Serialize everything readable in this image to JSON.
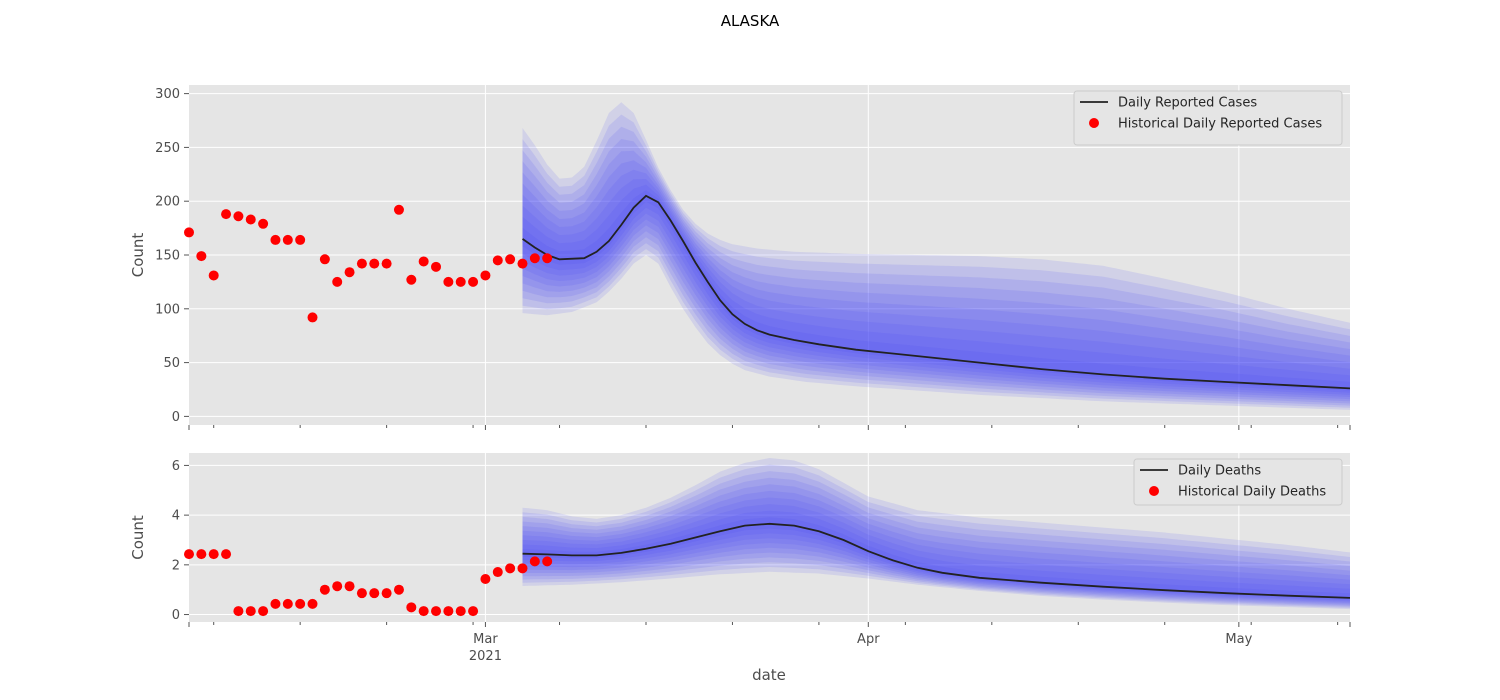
{
  "suptitle": "ALASKA",
  "chart_data": [
    {
      "type": "line",
      "ylabel": "Count",
      "xlabel": "",
      "ylim": [
        -8,
        308
      ],
      "yticks": [
        0,
        50,
        100,
        150,
        200,
        250,
        300
      ],
      "xlim": [
        "2021-02-05",
        "2021-05-10"
      ],
      "x_tick_labels": [
        {
          "date": "2021-03-01",
          "label": "Mar",
          "sublabel": "2021"
        },
        {
          "date": "2021-04-01",
          "label": "Apr",
          "sublabel": ""
        },
        {
          "date": "2021-05-01",
          "label": "May",
          "sublabel": ""
        }
      ],
      "grid": true,
      "legend_position": "top-right",
      "series": [
        {
          "name": "Daily Reported Cases",
          "kind": "line",
          "color": "#222222",
          "points": [
            [
              "2021-03-04",
              165
            ],
            [
              "2021-03-05",
              157
            ],
            [
              "2021-03-06",
              150
            ],
            [
              "2021-03-07",
              146
            ],
            [
              "2021-03-09",
              147
            ],
            [
              "2021-03-10",
              153
            ],
            [
              "2021-03-11",
              163
            ],
            [
              "2021-03-12",
              178
            ],
            [
              "2021-03-13",
              194
            ],
            [
              "2021-03-14",
              205
            ],
            [
              "2021-03-15",
              199
            ],
            [
              "2021-03-16",
              182
            ],
            [
              "2021-03-17",
              163
            ],
            [
              "2021-03-18",
              143
            ],
            [
              "2021-03-19",
              125
            ],
            [
              "2021-03-20",
              108
            ],
            [
              "2021-03-21",
              95
            ],
            [
              "2021-03-22",
              86
            ],
            [
              "2021-03-23",
              80
            ],
            [
              "2021-03-24",
              76
            ],
            [
              "2021-03-26",
              71
            ],
            [
              "2021-03-28",
              67
            ],
            [
              "2021-03-31",
              62
            ],
            [
              "2021-04-05",
              56
            ],
            [
              "2021-04-10",
              50
            ],
            [
              "2021-04-15",
              44
            ],
            [
              "2021-04-20",
              39
            ],
            [
              "2021-04-25",
              35
            ],
            [
              "2021-04-30",
              32
            ],
            [
              "2021-05-05",
              29
            ],
            [
              "2021-05-10",
              26
            ]
          ]
        },
        {
          "name": "Historical Daily Reported Cases",
          "kind": "scatter",
          "color": "#ff0000",
          "points": [
            [
              "2021-02-05",
              171
            ],
            [
              "2021-02-06",
              149
            ],
            [
              "2021-02-07",
              131
            ],
            [
              "2021-02-08",
              188
            ],
            [
              "2021-02-09",
              186
            ],
            [
              "2021-02-10",
              183
            ],
            [
              "2021-02-11",
              179
            ],
            [
              "2021-02-12",
              164
            ],
            [
              "2021-02-13",
              164
            ],
            [
              "2021-02-14",
              164
            ],
            [
              "2021-02-15",
              92
            ],
            [
              "2021-02-16",
              146
            ],
            [
              "2021-02-17",
              125
            ],
            [
              "2021-02-18",
              134
            ],
            [
              "2021-02-19",
              142
            ],
            [
              "2021-02-20",
              142
            ],
            [
              "2021-02-21",
              142
            ],
            [
              "2021-02-22",
              192
            ],
            [
              "2021-02-23",
              127
            ],
            [
              "2021-02-24",
              144
            ],
            [
              "2021-02-25",
              139
            ],
            [
              "2021-02-26",
              125
            ],
            [
              "2021-02-27",
              125
            ],
            [
              "2021-02-28",
              125
            ],
            [
              "2021-03-01",
              131
            ],
            [
              "2021-03-02",
              145
            ],
            [
              "2021-03-03",
              146
            ],
            [
              "2021-03-04",
              142
            ],
            [
              "2021-03-05",
              147
            ],
            [
              "2021-03-06",
              147
            ]
          ]
        }
      ],
      "uncertainty_band": {
        "color": "#3f3ff5",
        "upper": [
          [
            "2021-03-04",
            268
          ],
          [
            "2021-03-05",
            252
          ],
          [
            "2021-03-06",
            234
          ],
          [
            "2021-03-07",
            221
          ],
          [
            "2021-03-08",
            222
          ],
          [
            "2021-03-09",
            232
          ],
          [
            "2021-03-10",
            256
          ],
          [
            "2021-03-11",
            282
          ],
          [
            "2021-03-12",
            292
          ],
          [
            "2021-03-13",
            282
          ],
          [
            "2021-03-14",
            257
          ],
          [
            "2021-03-15",
            231
          ],
          [
            "2021-03-16",
            210
          ],
          [
            "2021-03-17",
            192
          ],
          [
            "2021-03-18",
            179
          ],
          [
            "2021-03-19",
            170
          ],
          [
            "2021-03-20",
            164
          ],
          [
            "2021-03-21",
            160
          ],
          [
            "2021-03-23",
            156
          ],
          [
            "2021-03-26",
            153
          ],
          [
            "2021-03-31",
            151
          ],
          [
            "2021-04-05",
            150
          ],
          [
            "2021-04-10",
            149
          ],
          [
            "2021-04-15",
            146
          ],
          [
            "2021-04-20",
            140
          ],
          [
            "2021-04-25",
            128
          ],
          [
            "2021-04-30",
            115
          ],
          [
            "2021-05-05",
            100
          ],
          [
            "2021-05-10",
            87
          ]
        ],
        "lower": [
          [
            "2021-03-04",
            96
          ],
          [
            "2021-03-06",
            94
          ],
          [
            "2021-03-08",
            97
          ],
          [
            "2021-03-10",
            106
          ],
          [
            "2021-03-11",
            116
          ],
          [
            "2021-03-12",
            128
          ],
          [
            "2021-03-13",
            142
          ],
          [
            "2021-03-14",
            150
          ],
          [
            "2021-03-15",
            142
          ],
          [
            "2021-03-16",
            120
          ],
          [
            "2021-03-17",
            100
          ],
          [
            "2021-03-18",
            83
          ],
          [
            "2021-03-19",
            68
          ],
          [
            "2021-03-20",
            57
          ],
          [
            "2021-03-21",
            49
          ],
          [
            "2021-03-22",
            43
          ],
          [
            "2021-03-24",
            37
          ],
          [
            "2021-03-27",
            32
          ],
          [
            "2021-03-31",
            28
          ],
          [
            "2021-04-05",
            24
          ],
          [
            "2021-04-10",
            20
          ],
          [
            "2021-04-15",
            17
          ],
          [
            "2021-04-20",
            14
          ],
          [
            "2021-04-25",
            12
          ],
          [
            "2021-04-30",
            10
          ],
          [
            "2021-05-05",
            8
          ],
          [
            "2021-05-10",
            6
          ]
        ]
      }
    },
    {
      "type": "line",
      "ylabel": "Count",
      "xlabel": "date",
      "ylim": [
        -0.3,
        6.5
      ],
      "yticks": [
        0,
        2,
        4,
        6
      ],
      "xlim": [
        "2021-02-05",
        "2021-05-10"
      ],
      "x_tick_labels": [
        {
          "date": "2021-03-01",
          "label": "Mar",
          "sublabel": "2021"
        },
        {
          "date": "2021-04-01",
          "label": "Apr",
          "sublabel": ""
        },
        {
          "date": "2021-05-01",
          "label": "May",
          "sublabel": ""
        }
      ],
      "grid": true,
      "legend_position": "top-right",
      "series": [
        {
          "name": "Daily Deaths",
          "kind": "line",
          "color": "#222222",
          "points": [
            [
              "2021-03-04",
              2.45
            ],
            [
              "2021-03-06",
              2.42
            ],
            [
              "2021-03-08",
              2.38
            ],
            [
              "2021-03-10",
              2.38
            ],
            [
              "2021-03-12",
              2.48
            ],
            [
              "2021-03-14",
              2.65
            ],
            [
              "2021-03-16",
              2.85
            ],
            [
              "2021-03-18",
              3.1
            ],
            [
              "2021-03-20",
              3.35
            ],
            [
              "2021-03-22",
              3.58
            ],
            [
              "2021-03-24",
              3.65
            ],
            [
              "2021-03-26",
              3.58
            ],
            [
              "2021-03-28",
              3.35
            ],
            [
              "2021-03-30",
              3.0
            ],
            [
              "2021-04-01",
              2.55
            ],
            [
              "2021-04-03",
              2.18
            ],
            [
              "2021-04-05",
              1.88
            ],
            [
              "2021-04-07",
              1.68
            ],
            [
              "2021-04-10",
              1.48
            ],
            [
              "2021-04-15",
              1.28
            ],
            [
              "2021-04-20",
              1.12
            ],
            [
              "2021-04-25",
              0.98
            ],
            [
              "2021-04-30",
              0.86
            ],
            [
              "2021-05-05",
              0.76
            ],
            [
              "2021-05-10",
              0.67
            ]
          ]
        },
        {
          "name": "Historical Daily Deaths",
          "kind": "scatter",
          "color": "#ff0000",
          "points": [
            [
              "2021-02-05",
              2.43
            ],
            [
              "2021-02-06",
              2.43
            ],
            [
              "2021-02-07",
              2.43
            ],
            [
              "2021-02-08",
              2.43
            ],
            [
              "2021-02-09",
              0.14
            ],
            [
              "2021-02-10",
              0.14
            ],
            [
              "2021-02-11",
              0.14
            ],
            [
              "2021-02-12",
              0.43
            ],
            [
              "2021-02-13",
              0.43
            ],
            [
              "2021-02-14",
              0.43
            ],
            [
              "2021-02-15",
              0.43
            ],
            [
              "2021-02-16",
              1.0
            ],
            [
              "2021-02-17",
              1.14
            ],
            [
              "2021-02-18",
              1.14
            ],
            [
              "2021-02-19",
              0.86
            ],
            [
              "2021-02-20",
              0.86
            ],
            [
              "2021-02-21",
              0.86
            ],
            [
              "2021-02-22",
              1.0
            ],
            [
              "2021-02-23",
              0.29
            ],
            [
              "2021-02-24",
              0.14
            ],
            [
              "2021-02-25",
              0.14
            ],
            [
              "2021-02-26",
              0.14
            ],
            [
              "2021-02-27",
              0.14
            ],
            [
              "2021-02-28",
              0.14
            ],
            [
              "2021-03-01",
              1.43
            ],
            [
              "2021-03-02",
              1.71
            ],
            [
              "2021-03-03",
              1.86
            ],
            [
              "2021-03-04",
              1.86
            ],
            [
              "2021-03-05",
              2.14
            ],
            [
              "2021-03-06",
              2.14
            ]
          ]
        }
      ],
      "uncertainty_band": {
        "color": "#3f3ff5",
        "upper": [
          [
            "2021-03-04",
            4.3
          ],
          [
            "2021-03-06",
            4.2
          ],
          [
            "2021-03-08",
            3.95
          ],
          [
            "2021-03-10",
            3.85
          ],
          [
            "2021-03-12",
            4.0
          ],
          [
            "2021-03-14",
            4.3
          ],
          [
            "2021-03-16",
            4.7
          ],
          [
            "2021-03-18",
            5.2
          ],
          [
            "2021-03-20",
            5.75
          ],
          [
            "2021-03-22",
            6.1
          ],
          [
            "2021-03-24",
            6.3
          ],
          [
            "2021-03-26",
            6.2
          ],
          [
            "2021-03-28",
            5.85
          ],
          [
            "2021-03-30",
            5.3
          ],
          [
            "2021-04-01",
            4.75
          ],
          [
            "2021-04-05",
            4.2
          ],
          [
            "2021-04-10",
            3.9
          ],
          [
            "2021-04-15",
            3.7
          ],
          [
            "2021-04-20",
            3.5
          ],
          [
            "2021-04-25",
            3.3
          ],
          [
            "2021-04-30",
            3.05
          ],
          [
            "2021-05-05",
            2.8
          ],
          [
            "2021-05-10",
            2.5
          ]
        ],
        "lower": [
          [
            "2021-03-04",
            1.15
          ],
          [
            "2021-03-08",
            1.2
          ],
          [
            "2021-03-12",
            1.3
          ],
          [
            "2021-03-16",
            1.45
          ],
          [
            "2021-03-20",
            1.62
          ],
          [
            "2021-03-24",
            1.72
          ],
          [
            "2021-03-28",
            1.65
          ],
          [
            "2021-04-01",
            1.45
          ],
          [
            "2021-04-05",
            1.2
          ],
          [
            "2021-04-10",
            0.95
          ],
          [
            "2021-04-15",
            0.75
          ],
          [
            "2021-04-20",
            0.6
          ],
          [
            "2021-04-25",
            0.48
          ],
          [
            "2021-04-30",
            0.38
          ],
          [
            "2021-05-05",
            0.3
          ],
          [
            "2021-05-10",
            0.22
          ]
        ]
      }
    }
  ]
}
